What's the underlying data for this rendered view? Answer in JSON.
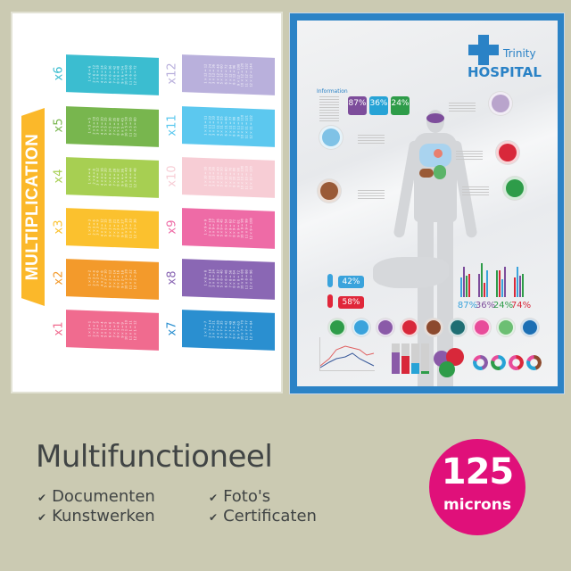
{
  "left_poster": {
    "banner": "MULTIPLICATION",
    "tables_left": [
      {
        "label": "x6",
        "n": 6,
        "color": "#3bbdd0"
      },
      {
        "label": "x5",
        "n": 5,
        "color": "#78b64e"
      },
      {
        "label": "x4",
        "n": 4,
        "color": "#a7cf52"
      },
      {
        "label": "x3",
        "n": 3,
        "color": "#fbc12e"
      },
      {
        "label": "x2",
        "n": 2,
        "color": "#f39a2b"
      },
      {
        "label": "x1",
        "n": 1,
        "color": "#f06b8f"
      }
    ],
    "tables_right": [
      {
        "label": "x12",
        "n": 12,
        "color": "#b9b0dc"
      },
      {
        "label": "x11",
        "n": 11,
        "color": "#5cc8ef"
      },
      {
        "label": "x10",
        "n": 10,
        "color": "#f7cdd5"
      },
      {
        "label": "x9",
        "n": 9,
        "color": "#ee6ba6"
      },
      {
        "label": "x8",
        "n": 8,
        "color": "#8a67b4"
      },
      {
        "label": "x7",
        "n": 7,
        "color": "#2a8fd0"
      }
    ]
  },
  "right_poster": {
    "brand_small": "Trinity",
    "brand_large": "HOSPITAL",
    "info_title": "Information",
    "tiles": [
      {
        "value": "87",
        "unit": "%",
        "color": "#7d4d9b"
      },
      {
        "value": "36",
        "unit": "%",
        "color": "#27a3d6"
      },
      {
        "value": "24",
        "unit": "%",
        "color": "#2e9c49"
      }
    ],
    "gender": [
      {
        "value": "42%",
        "color": "#3aa3dc"
      },
      {
        "value": "58%",
        "color": "#e0273a"
      }
    ],
    "bar_stats": [
      {
        "value": "87%",
        "color": "#3aa3dc"
      },
      {
        "value": "36%",
        "color": "#7d4d9b"
      },
      {
        "value": "24%",
        "color": "#2e9c49"
      },
      {
        "value": "74%",
        "color": "#d8283a"
      }
    ],
    "icon_row": [
      {
        "icon": "stomach-icon",
        "color": "#2e9c49"
      },
      {
        "icon": "lungs-icon",
        "color": "#3aa3dc"
      },
      {
        "icon": "brain-icon",
        "color": "#8a5aa8"
      },
      {
        "icon": "heart-organ-icon",
        "color": "#d8283a"
      },
      {
        "icon": "liver-icon",
        "color": "#8c4a2e"
      },
      {
        "icon": "tooth-icon",
        "color": "#1f6e73"
      },
      {
        "icon": "heart-icon",
        "color": "#e84c9a"
      },
      {
        "icon": "sleep-icon",
        "color": "#6cbf73"
      },
      {
        "icon": "apple-icon",
        "color": "#1c6fb4"
      }
    ]
  },
  "footer": {
    "headline": "Multifunctioneel",
    "features": [
      "Documenten",
      "Kunstwerken",
      "Foto's",
      "Certificaten"
    ],
    "badge_number": "125",
    "badge_unit": "microns",
    "badge_color": "#e0107a"
  }
}
